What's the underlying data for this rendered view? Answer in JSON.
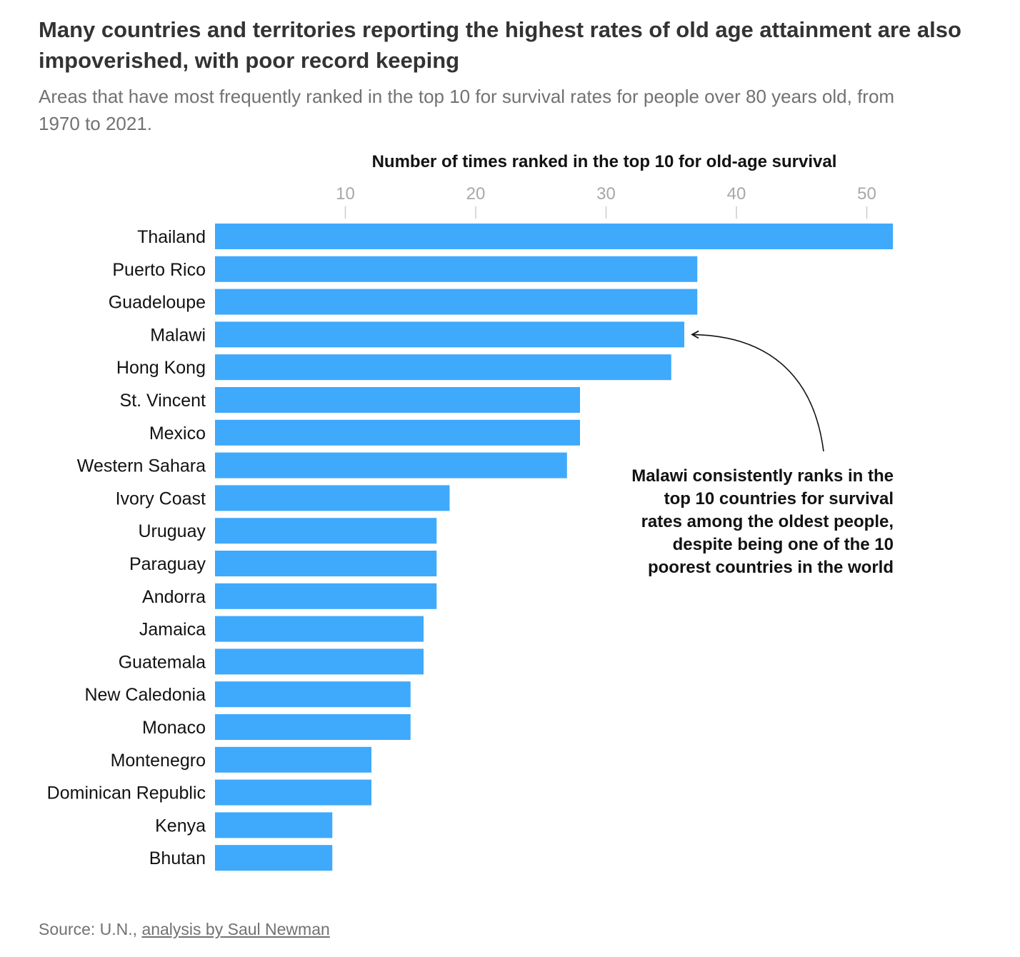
{
  "header": {
    "title": "Many countries and territories reporting the highest rates of old age attainment are also impoverished, with poor record keeping",
    "subtitle": "Areas that have most frequently ranked in the top 10 for survival rates for people over 80 years old, from 1970 to 2021."
  },
  "chart_data": {
    "type": "bar",
    "orientation": "horizontal",
    "xlabel": "Number of times ranked in the top 10 for old-age survival",
    "ylabel": "",
    "xlim": [
      0,
      52
    ],
    "xticks": [
      10,
      20,
      30,
      40,
      50
    ],
    "grid": false,
    "bar_color": "#3fa9fc",
    "categories": [
      "Thailand",
      "Puerto Rico",
      "Guadeloupe",
      "Malawi",
      "Hong Kong",
      "St. Vincent",
      "Mexico",
      "Western Sahara",
      "Ivory Coast",
      "Uruguay",
      "Paraguay",
      "Andorra",
      "Jamaica",
      "Guatemala",
      "New Caledonia",
      "Monaco",
      "Montenegro",
      "Dominican Republic",
      "Kenya",
      "Bhutan"
    ],
    "values": [
      52,
      37,
      37,
      36,
      35,
      28,
      28,
      27,
      18,
      17,
      17,
      17,
      16,
      16,
      15,
      15,
      12,
      12,
      9,
      9
    ],
    "annotation": {
      "target": "Malawi",
      "lines": [
        "Malawi consistently ranks in the",
        "top 10 countries for survival",
        "rates among the oldest people,",
        "despite being one of the 10",
        "poorest countries in the world"
      ]
    }
  },
  "footer": {
    "source_prefix": "Source: U.N., ",
    "source_link": "analysis by Saul Newman"
  }
}
